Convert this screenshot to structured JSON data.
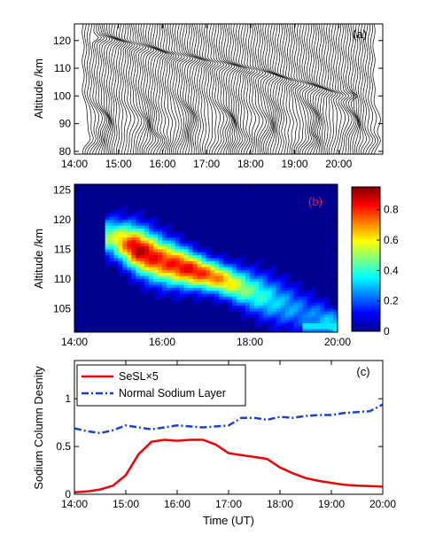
{
  "chart_data": [
    {
      "panel": "(a)",
      "type": "line",
      "description_rows": "stack of sodium density profiles versus altitude, one profile per time step, each offset along the time axis",
      "xlabel": "",
      "ylabel": "Altitude /km",
      "x_ticks": [
        "14:00",
        "15:00",
        "16:00",
        "17:00",
        "18:00",
        "19:00",
        "20:00"
      ],
      "x_range": [
        "14:00",
        "21:00"
      ],
      "y_ticks": [
        80,
        90,
        100,
        110,
        120
      ],
      "ylim": [
        79,
        126
      ],
      "profile_count": 120,
      "main_layer_altitude_km": [
        80,
        100
      ],
      "sporadic_layer_path": {
        "time": [
          "14:30",
          "15:20",
          "16:00",
          "16:40",
          "17:20",
          "18:00",
          "18:40",
          "19:20",
          "20:00"
        ],
        "altitude_km": [
          121,
          118,
          115,
          113,
          111,
          109,
          106,
          103,
          100
        ]
      }
    },
    {
      "panel": "(b)",
      "type": "heatmap",
      "xlabel": "",
      "ylabel": "Altitude /km",
      "x_ticks": [
        "14:00",
        "16:00",
        "18:00",
        "20:00"
      ],
      "x_range": [
        "14:00",
        "20:00"
      ],
      "y_ticks": [
        105,
        110,
        115,
        120,
        125
      ],
      "ylim": [
        101,
        126
      ],
      "colorbar": {
        "ticks": [
          0,
          0.2,
          0.4,
          0.6,
          0.8
        ],
        "range": [
          0,
          0.95
        ],
        "colormap": "jet"
      },
      "peak": {
        "time": "15:25",
        "altitude_km": 115,
        "value": 0.92
      },
      "ridge": {
        "time": [
          "14:50",
          "15:25",
          "16:00",
          "16:40",
          "17:20",
          "18:00",
          "18:40",
          "19:20",
          "20:00"
        ],
        "altitude_km": [
          117,
          115,
          113,
          111.5,
          110,
          108,
          106,
          104,
          102
        ],
        "peak_value": [
          0.5,
          0.92,
          0.8,
          0.85,
          0.7,
          0.45,
          0.3,
          0.22,
          0.35
        ]
      },
      "colors": {
        "background": "#00008f",
        "tag": "#e8175d"
      }
    },
    {
      "panel": "(c)",
      "type": "line",
      "xlabel": "Time (UT)",
      "ylabel": "Sodium Column Desnity",
      "x_ticks": [
        "14:00",
        "15:00",
        "16:00",
        "17:00",
        "18:00",
        "19:00",
        "20:00"
      ],
      "x_range": [
        "14:00",
        "20:00"
      ],
      "y_ticks": [
        0,
        0.5,
        1
      ],
      "ylim": [
        0,
        1.4
      ],
      "series": [
        {
          "name": "SeSL×5",
          "color": "#e8000b",
          "style": "solid",
          "time": [
            "14:00",
            "14:15",
            "14:30",
            "14:45",
            "15:00",
            "15:15",
            "15:30",
            "15:45",
            "16:00",
            "16:15",
            "16:30",
            "16:45",
            "17:00",
            "17:15",
            "17:30",
            "17:45",
            "18:00",
            "18:15",
            "18:30",
            "18:45",
            "19:00",
            "19:15",
            "19:30",
            "19:45",
            "20:00"
          ],
          "values": [
            0.02,
            0.03,
            0.05,
            0.09,
            0.2,
            0.42,
            0.55,
            0.57,
            0.56,
            0.57,
            0.57,
            0.52,
            0.43,
            0.41,
            0.39,
            0.37,
            0.28,
            0.22,
            0.17,
            0.14,
            0.12,
            0.1,
            0.09,
            0.085,
            0.08
          ]
        },
        {
          "name": "Normal Sodium Layer",
          "color": "#1f3fd0",
          "style": "dash-dot",
          "time": [
            "14:00",
            "14:15",
            "14:30",
            "14:45",
            "15:00",
            "15:15",
            "15:30",
            "15:45",
            "16:00",
            "16:15",
            "16:30",
            "16:45",
            "17:00",
            "17:15",
            "17:30",
            "17:45",
            "18:00",
            "18:15",
            "18:30",
            "18:45",
            "19:00",
            "19:15",
            "19:30",
            "19:45",
            "20:00"
          ],
          "values": [
            0.69,
            0.66,
            0.64,
            0.67,
            0.72,
            0.7,
            0.68,
            0.7,
            0.72,
            0.71,
            0.7,
            0.71,
            0.72,
            0.8,
            0.8,
            0.78,
            0.81,
            0.8,
            0.82,
            0.83,
            0.83,
            0.85,
            0.86,
            0.87,
            0.94
          ]
        }
      ],
      "legend_placement": "top-left"
    }
  ]
}
